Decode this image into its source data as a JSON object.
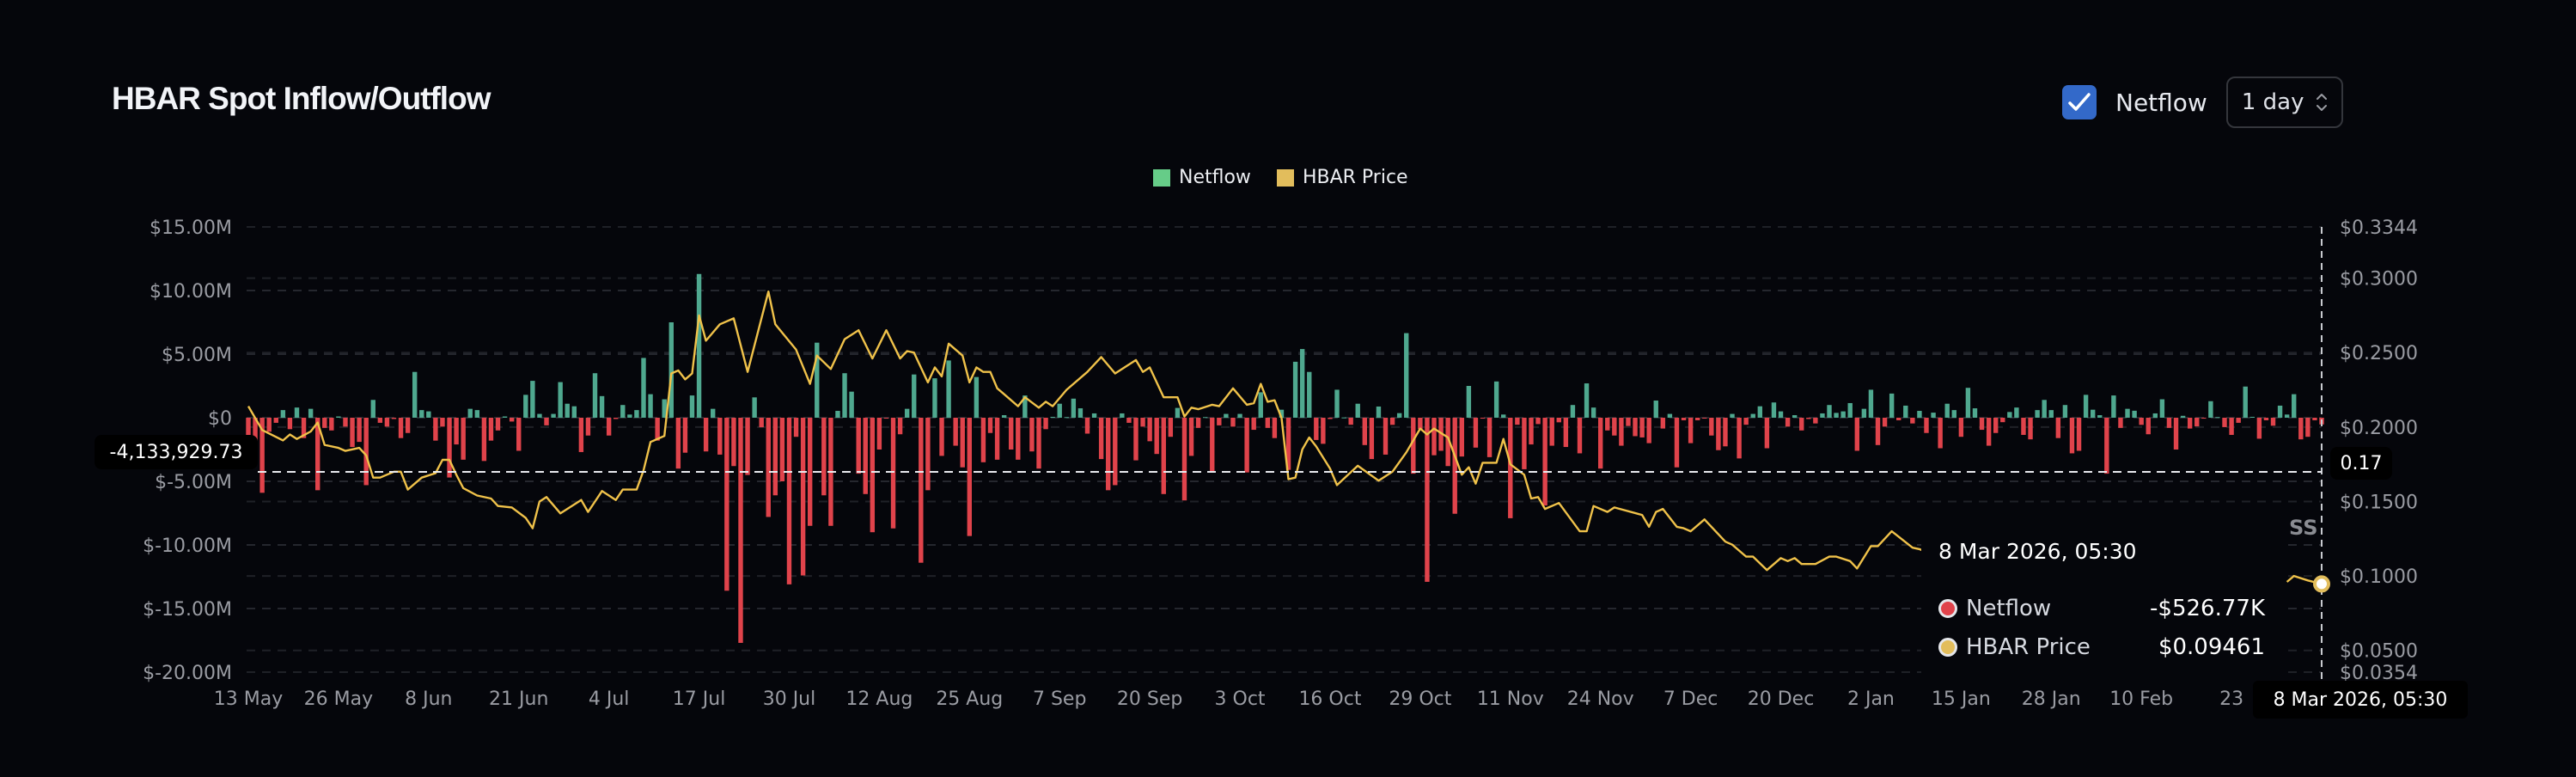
{
  "header": {
    "title": "HBAR Spot Inflow/Outflow",
    "netflow_checkbox": {
      "label": "Netflow",
      "checked": true,
      "icon": "check-icon"
    },
    "interval_select": {
      "value": "1 day",
      "icon": "chevron-up-down-icon"
    }
  },
  "colors": {
    "background": "#05060b",
    "inflow_bar": "#4fa88f",
    "outflow_bar": "#e0434b",
    "price_line": "#f0c24a",
    "legend_netflow": "#66cc88",
    "legend_price": "#e2bd5c",
    "checkbox": "#3369c9"
  },
  "crosshair": {
    "y_left_label": "-4,133,929.73",
    "y_right_label": "0.17",
    "x_label": "8 Mar 2026, 05:30"
  },
  "tooltip": {
    "date": "8 Mar 2026, 05:30",
    "rows": [
      {
        "label": "Netflow",
        "value": "-$526.77K",
        "dot_color": "#e0434b"
      },
      {
        "label": "HBAR Price",
        "value": "$0.09461",
        "dot_color": "#e2bd5c"
      }
    ]
  },
  "watermark_fragment": "SS",
  "chart_data": {
    "type": "bar",
    "title": "HBAR Spot Inflow/Outflow",
    "legend": {
      "placement": "top-center",
      "entries": [
        "Netflow",
        "HBAR Price"
      ]
    },
    "grid": true,
    "x_tick_labels": [
      "13 May",
      "26 May",
      "8 Jun",
      "21 Jun",
      "4 Jul",
      "17 Jul",
      "30 Jul",
      "12 Aug",
      "25 Aug",
      "7 Sep",
      "20 Sep",
      "3 Oct",
      "16 Oct",
      "29 Oct",
      "11 Nov",
      "24 Nov",
      "7 Dec",
      "20 Dec",
      "2 Jan",
      "15 Jan",
      "28 Jan",
      "10 Feb",
      "23"
    ],
    "y_left": {
      "tick_labels": [
        "$15.00M",
        "$10.00M",
        "$5.00M",
        "$0",
        "$-5.00M",
        "$-10.00M",
        "$-15.00M",
        "$-20.00M"
      ],
      "ticks_musd": [
        15,
        10,
        5,
        0,
        -5,
        -10,
        -15,
        -20
      ],
      "range_musd": [
        -20,
        15
      ]
    },
    "y_right": {
      "tick_labels": [
        "$0.3344",
        "$0.3000",
        "$0.2500",
        "$0.2000",
        "$0.1500",
        "$0.1000",
        "$0.0500",
        "$0.0354"
      ],
      "ticks": [
        0.3344,
        0.3,
        0.25,
        0.2,
        0.15,
        0.1,
        0.05,
        0.0354
      ],
      "range": [
        0.0354,
        0.3344
      ]
    },
    "categories": [
      "2025-05-13",
      "2025-05-14",
      "2025-05-15",
      "2025-05-16",
      "2025-05-17",
      "2025-05-18",
      "2025-05-19",
      "2025-05-20",
      "2025-05-21",
      "2025-05-22",
      "2025-05-23",
      "2025-05-24",
      "2025-05-25",
      "2025-05-26",
      "2025-05-27",
      "2025-05-28",
      "2025-05-29",
      "2025-05-30",
      "2025-05-31",
      "2025-06-01",
      "2025-06-02",
      "2025-06-03",
      "2025-06-04",
      "2025-06-05",
      "2025-06-06",
      "2025-06-07",
      "2025-06-08",
      "2025-06-09",
      "2025-06-10",
      "2025-06-11",
      "2025-06-12",
      "2025-06-13",
      "2025-06-14",
      "2025-06-15",
      "2025-06-16",
      "2025-06-17",
      "2025-06-18",
      "2025-06-19",
      "2025-06-20",
      "2025-06-21",
      "2025-06-22",
      "2025-06-23",
      "2025-06-24",
      "2025-06-25",
      "2025-06-26",
      "2025-06-27",
      "2025-06-28",
      "2025-06-29",
      "2025-06-30",
      "2025-07-01",
      "2025-07-02",
      "2025-07-03",
      "2025-07-04",
      "2025-07-05",
      "2025-07-06",
      "2025-07-07",
      "2025-07-08",
      "2025-07-09",
      "2025-07-10",
      "2025-07-11",
      "2025-07-12",
      "2025-07-13",
      "2025-07-14",
      "2025-07-15",
      "2025-07-16",
      "2025-07-17",
      "2025-07-18",
      "2025-07-19",
      "2025-07-20",
      "2025-07-21",
      "2025-07-22",
      "2025-07-23",
      "2025-07-24",
      "2025-07-25",
      "2025-07-26",
      "2025-07-27",
      "2025-07-28",
      "2025-07-29",
      "2025-07-30",
      "2025-07-31",
      "2025-08-01",
      "2025-08-02",
      "2025-08-03",
      "2025-08-04",
      "2025-08-05",
      "2025-08-06",
      "2025-08-07",
      "2025-08-08",
      "2025-08-09",
      "2025-08-10",
      "2025-08-11",
      "2025-08-12",
      "2025-08-13",
      "2025-08-14",
      "2025-08-15",
      "2025-08-16",
      "2025-08-17",
      "2025-08-18",
      "2025-08-19",
      "2025-08-20",
      "2025-08-21",
      "2025-08-22",
      "2025-08-23",
      "2025-08-24",
      "2025-08-25",
      "2025-08-26",
      "2025-08-27",
      "2025-08-28",
      "2025-08-29",
      "2025-08-30",
      "2025-08-31",
      "2025-09-01",
      "2025-09-02",
      "2025-09-03",
      "2025-09-04",
      "2025-09-05",
      "2025-09-06",
      "2025-09-07",
      "2025-09-08",
      "2025-09-09",
      "2025-09-10",
      "2025-09-11",
      "2025-09-12",
      "2025-09-13",
      "2025-09-14",
      "2025-09-15",
      "2025-09-16",
      "2025-09-17",
      "2025-09-18",
      "2025-09-19",
      "2025-09-20",
      "2025-09-21",
      "2025-09-22",
      "2025-09-23",
      "2025-09-24",
      "2025-09-25",
      "2025-09-26",
      "2025-09-27",
      "2025-09-28",
      "2025-09-29",
      "2025-09-30",
      "2025-10-01",
      "2025-10-02",
      "2025-10-03",
      "2025-10-04",
      "2025-10-05",
      "2025-10-06",
      "2025-10-07",
      "2025-10-08",
      "2025-10-09",
      "2025-10-10",
      "2025-10-11",
      "2025-10-12",
      "2025-10-13",
      "2025-10-14",
      "2025-10-15",
      "2025-10-16",
      "2025-10-17",
      "2025-10-18",
      "2025-10-19",
      "2025-10-20",
      "2025-10-21",
      "2025-10-22",
      "2025-10-23",
      "2025-10-24",
      "2025-10-25",
      "2025-10-26",
      "2025-10-27",
      "2025-10-28",
      "2025-10-29",
      "2025-10-30",
      "2025-10-31",
      "2025-11-01",
      "2025-11-02",
      "2025-11-03",
      "2025-11-04",
      "2025-11-05",
      "2025-11-06",
      "2025-11-07",
      "2025-11-08",
      "2025-11-09",
      "2025-11-10",
      "2025-11-11",
      "2025-11-12",
      "2025-11-13",
      "2025-11-14",
      "2025-11-15",
      "2025-11-16",
      "2025-11-17",
      "2025-11-18",
      "2025-11-19",
      "2025-11-20",
      "2025-11-21",
      "2025-11-22",
      "2025-11-23",
      "2025-11-24",
      "2025-11-25",
      "2025-11-26",
      "2025-11-27",
      "2025-11-28",
      "2025-11-29",
      "2025-11-30",
      "2025-12-01",
      "2025-12-02",
      "2025-12-03",
      "2025-12-04",
      "2025-12-05",
      "2025-12-06",
      "2025-12-07",
      "2025-12-08",
      "2025-12-09",
      "2025-12-10",
      "2025-12-11",
      "2025-12-12",
      "2025-12-13",
      "2025-12-14",
      "2025-12-15",
      "2025-12-16",
      "2025-12-17",
      "2025-12-18",
      "2025-12-19",
      "2025-12-20",
      "2025-12-21",
      "2025-12-22",
      "2025-12-23",
      "2025-12-24",
      "2025-12-25",
      "2025-12-26",
      "2025-12-27",
      "2025-12-28",
      "2025-12-29",
      "2025-12-30",
      "2025-12-31",
      "2026-01-01",
      "2026-01-02",
      "2026-01-03",
      "2026-01-04",
      "2026-01-05",
      "2026-01-06",
      "2026-01-07",
      "2026-01-08",
      "2026-01-09",
      "2026-01-10",
      "2026-01-11",
      "2026-01-12",
      "2026-01-13",
      "2026-01-14",
      "2026-01-15",
      "2026-01-16",
      "2026-01-17",
      "2026-01-18",
      "2026-01-19",
      "2026-01-20",
      "2026-01-21",
      "2026-01-22",
      "2026-01-23",
      "2026-01-24",
      "2026-01-25",
      "2026-01-26",
      "2026-01-27",
      "2026-01-28",
      "2026-01-29",
      "2026-01-30",
      "2026-01-31",
      "2026-02-01",
      "2026-02-02",
      "2026-02-03",
      "2026-02-04",
      "2026-02-05",
      "2026-02-06",
      "2026-02-07",
      "2026-02-08",
      "2026-02-09",
      "2026-02-10",
      "2026-02-11",
      "2026-02-12",
      "2026-02-13",
      "2026-02-14",
      "2026-02-15",
      "2026-02-16",
      "2026-02-17",
      "2026-02-18",
      "2026-02-19",
      "2026-02-20",
      "2026-02-21",
      "2026-02-22",
      "2026-02-23",
      "2026-02-24",
      "2026-02-25",
      "2026-02-26",
      "2026-02-27",
      "2026-02-28",
      "2026-03-01",
      "2026-03-02",
      "2026-03-03",
      "2026-03-04",
      "2026-03-05",
      "2026-03-06",
      "2026-03-07",
      "2026-03-08"
    ],
    "series": [
      {
        "name": "Netflow",
        "axis": "left",
        "values_musd": [
          -2.7,
          -3.0,
          -5.9,
          -1.1,
          -0.4,
          0.6,
          -0.9,
          0.8,
          -1.6,
          0.7,
          -5.7,
          -0.8,
          -1.0,
          0.1,
          -0.7,
          -2.3,
          -1.9,
          -5.3,
          1.4,
          -0.4,
          -0.7,
          -0.1,
          -1.6,
          -1.2,
          3.6,
          0.6,
          0.5,
          -1.8,
          -0.7,
          -4.7,
          -2.1,
          -3.3,
          0.7,
          0.6,
          -3.4,
          -1.8,
          -1.0,
          0.1,
          -0.3,
          -2.6,
          1.8,
          2.9,
          0.3,
          -0.6,
          0.3,
          2.8,
          1.1,
          0.9,
          -2.7,
          -1.4,
          3.5,
          1.7,
          -1.4,
          -0.1,
          1.0,
          0.25,
          0.6,
          4.7,
          1.85,
          -1.8,
          1.45,
          7.5,
          -4.0,
          -2.75,
          1.75,
          11.3,
          -2.65,
          0.7,
          -2.9,
          -13.6,
          -3.8,
          -17.7,
          -4.5,
          1.6,
          -0.75,
          -7.8,
          -6.1,
          -5.0,
          -13.1,
          -1.5,
          -12.4,
          -8.5,
          5.9,
          -6.1,
          -8.5,
          0.54,
          3.5,
          2.05,
          -4.4,
          -6.0,
          -9.0,
          -2.5,
          -0.07,
          -8.7,
          -1.3,
          0.7,
          3.4,
          -11.4,
          -5.7,
          3.1,
          -3.0,
          4.5,
          -2.2,
          -3.9,
          -9.3,
          3.2,
          -3.5,
          -1.2,
          -3.3,
          0.2,
          -2.5,
          -3.3,
          1.75,
          -2.65,
          -4.0,
          -0.9,
          0.07,
          1.1,
          0.05,
          1.5,
          0.74,
          -1.25,
          0.34,
          -3.25,
          -5.7,
          -5.3,
          0.34,
          -0.4,
          -3.35,
          -0.7,
          -1.85,
          -2.85,
          -6.0,
          -1.5,
          0.77,
          -6.5,
          -3.0,
          -0.8,
          0.05,
          -4.2,
          -0.6,
          0.3,
          -0.7,
          0.3,
          -4.3,
          -0.95,
          2.0,
          -0.8,
          -1.6,
          0.63,
          -4.1,
          4.4,
          5.4,
          3.6,
          -1.75,
          -2.05,
          -0.1,
          2.2,
          0.02,
          -0.55,
          1.1,
          -2.15,
          -3.25,
          0.88,
          -2.9,
          -0.56,
          0.36,
          6.65,
          -4.4,
          -0.9,
          -12.9,
          -2.95,
          -2.6,
          -3.8,
          -7.55,
          -3.05,
          2.5,
          -2.35,
          -0.07,
          -3.1,
          2.85,
          0.25,
          -7.9,
          -0.55,
          -4.05,
          -2.1,
          -0.5,
          -6.9,
          -2.2,
          -0.36,
          -2.3,
          1.0,
          -2.8,
          2.7,
          0.8,
          -4.0,
          -1.0,
          -1.4,
          -2.2,
          -0.65,
          -1.45,
          -1.55,
          -2.0,
          1.35,
          -0.85,
          0.3,
          -3.9,
          -0.2,
          -2.0,
          -0.2,
          -0.05,
          -1.4,
          -2.55,
          -2.25,
          0.3,
          -3.2,
          -0.55,
          0.3,
          0.9,
          -2.4,
          1.2,
          0.5,
          -0.7,
          0.2,
          -1.0,
          -0.1,
          -0.45,
          0.34,
          1.0,
          0.38,
          0.5,
          1.15,
          -2.6,
          0.7,
          2.2,
          -2.15,
          -0.7,
          1.9,
          -0.2,
          0.95,
          -0.45,
          0.54,
          -1.2,
          0.4,
          -2.4,
          1.1,
          0.6,
          -1.5,
          2.35,
          0.74,
          -0.95,
          -2.2,
          -1.2,
          -0.35,
          0.45,
          0.8,
          -1.35,
          -1.7,
          0.6,
          1.4,
          0.6,
          -1.6,
          1.0,
          -2.8,
          -2.6,
          1.8,
          0.63,
          0.2,
          -4.4,
          1.75,
          -0.8,
          0.7,
          0.55,
          -0.56,
          -1.3,
          0.34,
          1.45,
          -0.8,
          -2.5,
          0.15,
          -0.85,
          -0.68,
          -0.07,
          1.3,
          0.05,
          -0.74,
          -1.35,
          -0.4,
          2.45,
          0.07,
          -1.65,
          -0.2,
          -0.63,
          0.95,
          0.25,
          1.85,
          -1.7,
          -1.5,
          -0.2,
          -0.52677
        ]
      },
      {
        "name": "HBAR Price",
        "axis": "right",
        "values": [
          0.214,
          null,
          0.198,
          null,
          null,
          0.191,
          0.195,
          0.192,
          null,
          0.197,
          0.203,
          0.188,
          null,
          0.186,
          0.184,
          null,
          0.186,
          0.181,
          0.166,
          0.166,
          null,
          0.17,
          0.17,
          0.158,
          null,
          0.166,
          null,
          0.169,
          0.178,
          0.178,
          0.168,
          0.159,
          null,
          0.154,
          null,
          0.152,
          0.147,
          null,
          0.146,
          null,
          0.139,
          0.132,
          0.15,
          0.153,
          null,
          0.142,
          0.145,
          null,
          0.151,
          0.143,
          0.15,
          0.157,
          null,
          0.151,
          0.158,
          null,
          0.158,
          0.171,
          0.19,
          null,
          0.194,
          0.236,
          0.238,
          0.232,
          0.236,
          0.275,
          0.258,
          null,
          0.269,
          null,
          0.273,
          null,
          0.237,
          null,
          null,
          0.291,
          0.269,
          null,
          null,
          0.252,
          null,
          0.229,
          0.248,
          null,
          0.239,
          null,
          0.259,
          null,
          0.265,
          null,
          0.246,
          null,
          0.265,
          null,
          0.246,
          0.251,
          0.25,
          null,
          0.23,
          0.24,
          0.234,
          0.256,
          null,
          0.248,
          0.23,
          0.24,
          0.237,
          0.237,
          0.226,
          0.222,
          null,
          0.214,
          0.22,
          null,
          0.213,
          0.217,
          0.214,
          null,
          0.225,
          null,
          null,
          0.237,
          null,
          0.247,
          null,
          0.236,
          null,
          null,
          0.245,
          0.237,
          0.24,
          null,
          0.22,
          null,
          0.22,
          0.207,
          0.213,
          0.212,
          null,
          0.215,
          0.214,
          null,
          0.226,
          null,
          0.215,
          0.216,
          0.229,
          0.217,
          0.218,
          0.206,
          0.165,
          0.166,
          0.185,
          0.193,
          0.187,
          null,
          0.172,
          0.161,
          null,
          null,
          0.174,
          null,
          null,
          0.164,
          null,
          0.17,
          null,
          0.183,
          null,
          0.199,
          0.195,
          0.199,
          null,
          0.193,
          null,
          0.168,
          0.173,
          0.162,
          0.176,
          null,
          0.176,
          0.192,
          0.175,
          null,
          0.168,
          0.152,
          0.153,
          0.145,
          null,
          0.149,
          null,
          null,
          0.13,
          0.13,
          0.147,
          null,
          0.143,
          0.146,
          null,
          null,
          null,
          0.141,
          0.133,
          0.143,
          0.145,
          null,
          0.133,
          0.132,
          0.13,
          null,
          0.138,
          null,
          null,
          0.123,
          0.121,
          null,
          0.113,
          0.113,
          null,
          0.104,
          null,
          0.112,
          0.11,
          0.112,
          0.108,
          null,
          0.108,
          null,
          0.113,
          0.113,
          null,
          0.11,
          0.105,
          null,
          0.12,
          0.12,
          null,
          0.13,
          null,
          null,
          0.119,
          0.118,
          0.116,
          0.114,
          null,
          null,
          null,
          null,
          null,
          null,
          null,
          null,
          null,
          null,
          null,
          null,
          null,
          null,
          null,
          null,
          null,
          null,
          null,
          null,
          null,
          null,
          null,
          null,
          null,
          null,
          null,
          null,
          null,
          null,
          null,
          null,
          null,
          null,
          null,
          null,
          null,
          null,
          null,
          null,
          null,
          null,
          null,
          null,
          null,
          null,
          null,
          null,
          null,
          null,
          0.096,
          0.1,
          null,
          0.097,
          null,
          0.09461
        ]
      }
    ]
  }
}
